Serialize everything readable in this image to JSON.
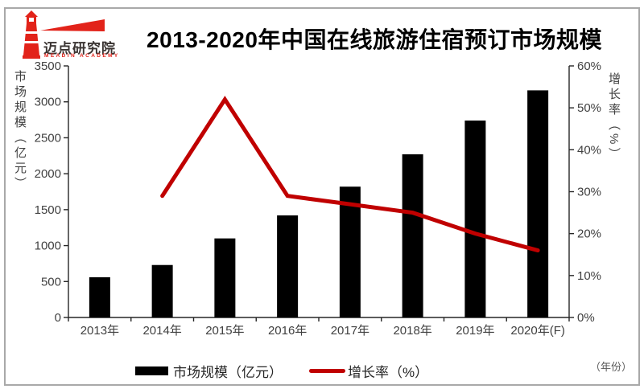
{
  "logo": {
    "name": "迈点研究院",
    "subtitle": "MEADIN ACADEMY",
    "color": "#e2231a"
  },
  "title": "2013-2020年中国在线旅游住宿预订市场规模",
  "chart_data": {
    "type": "bar",
    "subtype": "combo-bar-line",
    "title": "2013-2020年中国在线旅游住宿预订市场规模",
    "categories": [
      "2013年",
      "2014年",
      "2015年",
      "2016年",
      "2017年",
      "2018年",
      "2019年",
      "2020年(F)"
    ],
    "series": [
      {
        "name": "市场规模（亿元）",
        "type": "bar",
        "axis": "left",
        "color": "#000000",
        "values": [
          560,
          730,
          1100,
          1420,
          1820,
          2270,
          2740,
          3160
        ]
      },
      {
        "name": "增长率（%）",
        "type": "line",
        "axis": "right",
        "color": "#c00000",
        "values": [
          null,
          29,
          52,
          29,
          27,
          25,
          20,
          16
        ]
      }
    ],
    "left_axis": {
      "label": "市场规模（亿元）",
      "min": 0,
      "max": 3500,
      "step": 500
    },
    "right_axis": {
      "label": "增长率（%）",
      "min": 0,
      "max": 60,
      "step": 10,
      "unit": "%"
    },
    "x_note": "（年份）",
    "grid": false,
    "legend_position": "bottom"
  },
  "colors": {
    "bar": "#000000",
    "line": "#c00000",
    "axis_text": "#404040",
    "border": "#a9a9a9",
    "logo_red": "#e2231a"
  }
}
